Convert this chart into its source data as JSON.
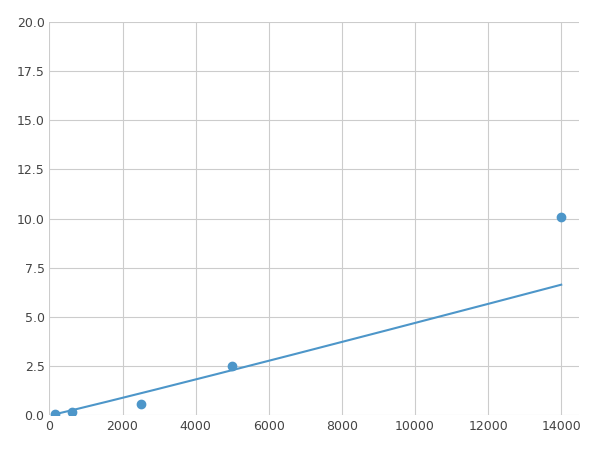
{
  "x_data": [
    156,
    625,
    2500,
    5000,
    14000
  ],
  "y_data": [
    0.1,
    0.2,
    0.6,
    2.5,
    10.1
  ],
  "line_color": "#4d96c9",
  "marker_color": "#4d96c9",
  "marker_size": 6,
  "xlim": [
    0,
    14500
  ],
  "ylim": [
    0,
    20
  ],
  "xticks": [
    0,
    2000,
    4000,
    6000,
    8000,
    10000,
    12000,
    14000
  ],
  "yticks": [
    0.0,
    2.5,
    5.0,
    7.5,
    10.0,
    12.5,
    15.0,
    17.5,
    20.0
  ],
  "grid_color": "#cccccc",
  "bg_color": "#ffffff",
  "figsize": [
    6.0,
    4.5
  ],
  "dpi": 100
}
